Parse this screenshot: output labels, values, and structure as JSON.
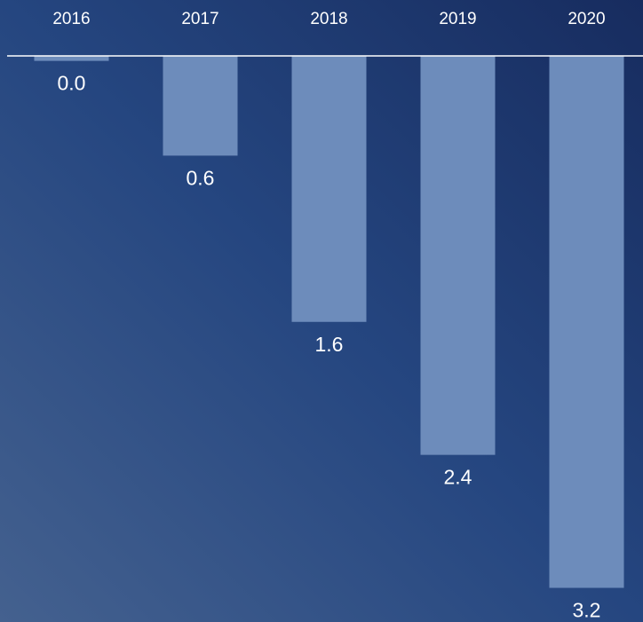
{
  "chart_data": {
    "type": "bar",
    "categories": [
      "2016",
      "2017",
      "2018",
      "2019",
      "2020"
    ],
    "values": [
      0.03,
      0.6,
      1.6,
      2.4,
      3.2
    ],
    "value_labels": [
      "0.0",
      "0.6",
      "1.6",
      "2.4",
      "3.2"
    ],
    "color": "#6d8cbb",
    "ylim": [
      0,
      3.4
    ]
  }
}
